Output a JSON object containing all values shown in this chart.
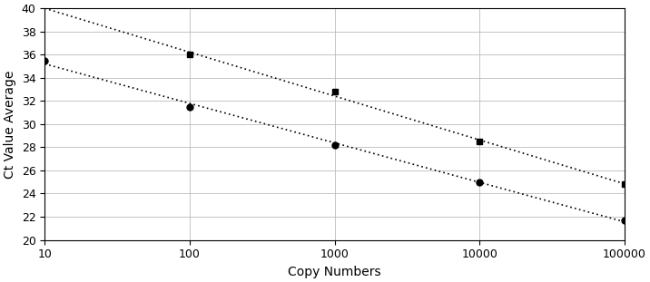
{
  "series1_x": [
    100,
    1000,
    10000,
    100000
  ],
  "series1_y": [
    36.0,
    32.8,
    28.5,
    24.8
  ],
  "series1_marker": "s",
  "series2_x": [
    10,
    100,
    1000,
    10000,
    100000
  ],
  "series2_y": [
    35.5,
    31.5,
    28.2,
    25.0,
    21.7
  ],
  "series2_marker": "o",
  "xmin": 10,
  "xmax": 100000,
  "ymin": 20,
  "ymax": 40,
  "yticks": [
    20,
    22,
    24,
    26,
    28,
    30,
    32,
    34,
    36,
    38,
    40
  ],
  "xticks": [
    10,
    100,
    1000,
    10000,
    100000
  ],
  "xtick_labels": [
    "10",
    "100",
    "1000",
    "10000",
    "100000"
  ],
  "xlabel": "Copy Numbers",
  "ylabel": "Ct Value Average",
  "line_color": "#000000",
  "marker_color": "#000000",
  "marker_size": 5,
  "line_width": 1.2,
  "dotted_style": "dotted",
  "background_color": "#ffffff",
  "grid_color": "#bbbbbb",
  "figwidth": 7.16,
  "figheight": 3.11,
  "dpi": 100
}
